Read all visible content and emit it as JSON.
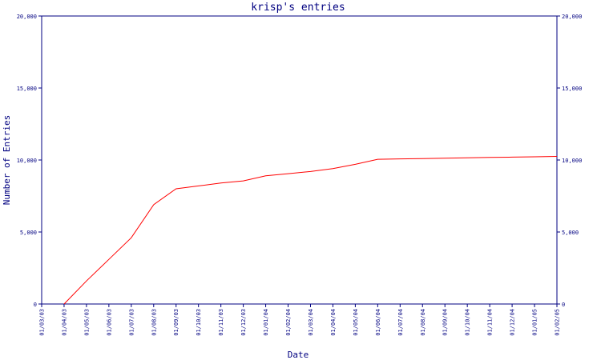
{
  "chart_data": {
    "type": "line",
    "title": "krisp's entries",
    "xlabel": "Date",
    "ylabel": "Number of Entries",
    "y_ticks": [
      0,
      5000,
      10000,
      15000,
      20000
    ],
    "y_tick_labels": [
      "0",
      "5,000",
      "10,000",
      "15,000",
      "20,000"
    ],
    "ylim": [
      0,
      20000
    ],
    "x_tick_labels": [
      "01/03/03",
      "01/04/03",
      "01/05/03",
      "01/06/03",
      "01/07/03",
      "01/08/03",
      "01/09/03",
      "01/10/03",
      "01/11/03",
      "01/12/03",
      "01/01/04",
      "01/02/04",
      "01/03/04",
      "01/04/04",
      "01/05/04",
      "01/06/04",
      "01/07/04",
      "01/08/04",
      "01/09/04",
      "01/10/04",
      "01/11/04",
      "01/12/04",
      "01/01/05",
      "01/02/05"
    ],
    "x_values": [
      "01/03/03",
      "01/04/03",
      "01/05/03",
      "01/06/03",
      "01/07/03",
      "01/08/03",
      "01/09/03",
      "01/10/03",
      "01/11/03",
      "01/12/03",
      "01/01/04",
      "01/02/04",
      "01/03/04",
      "01/04/04",
      "01/05/04",
      "01/06/04",
      "01/07/04",
      "01/08/04",
      "01/09/04",
      "01/10/04",
      "01/11/04",
      "01/12/04",
      "01/01/05",
      "01/02/05"
    ],
    "series": [
      {
        "values": [
          null,
          0,
          1600,
          3100,
          4600,
          6900,
          8000,
          8200,
          8400,
          8550,
          8900,
          9050,
          9200,
          9400,
          9700,
          10050,
          10080,
          10100,
          10120,
          10150,
          10180,
          10200,
          10220,
          10250
        ]
      }
    ],
    "line_color": "#ff0000",
    "axis_color": "#000080",
    "grid": false,
    "dual_y_axis": true
  }
}
